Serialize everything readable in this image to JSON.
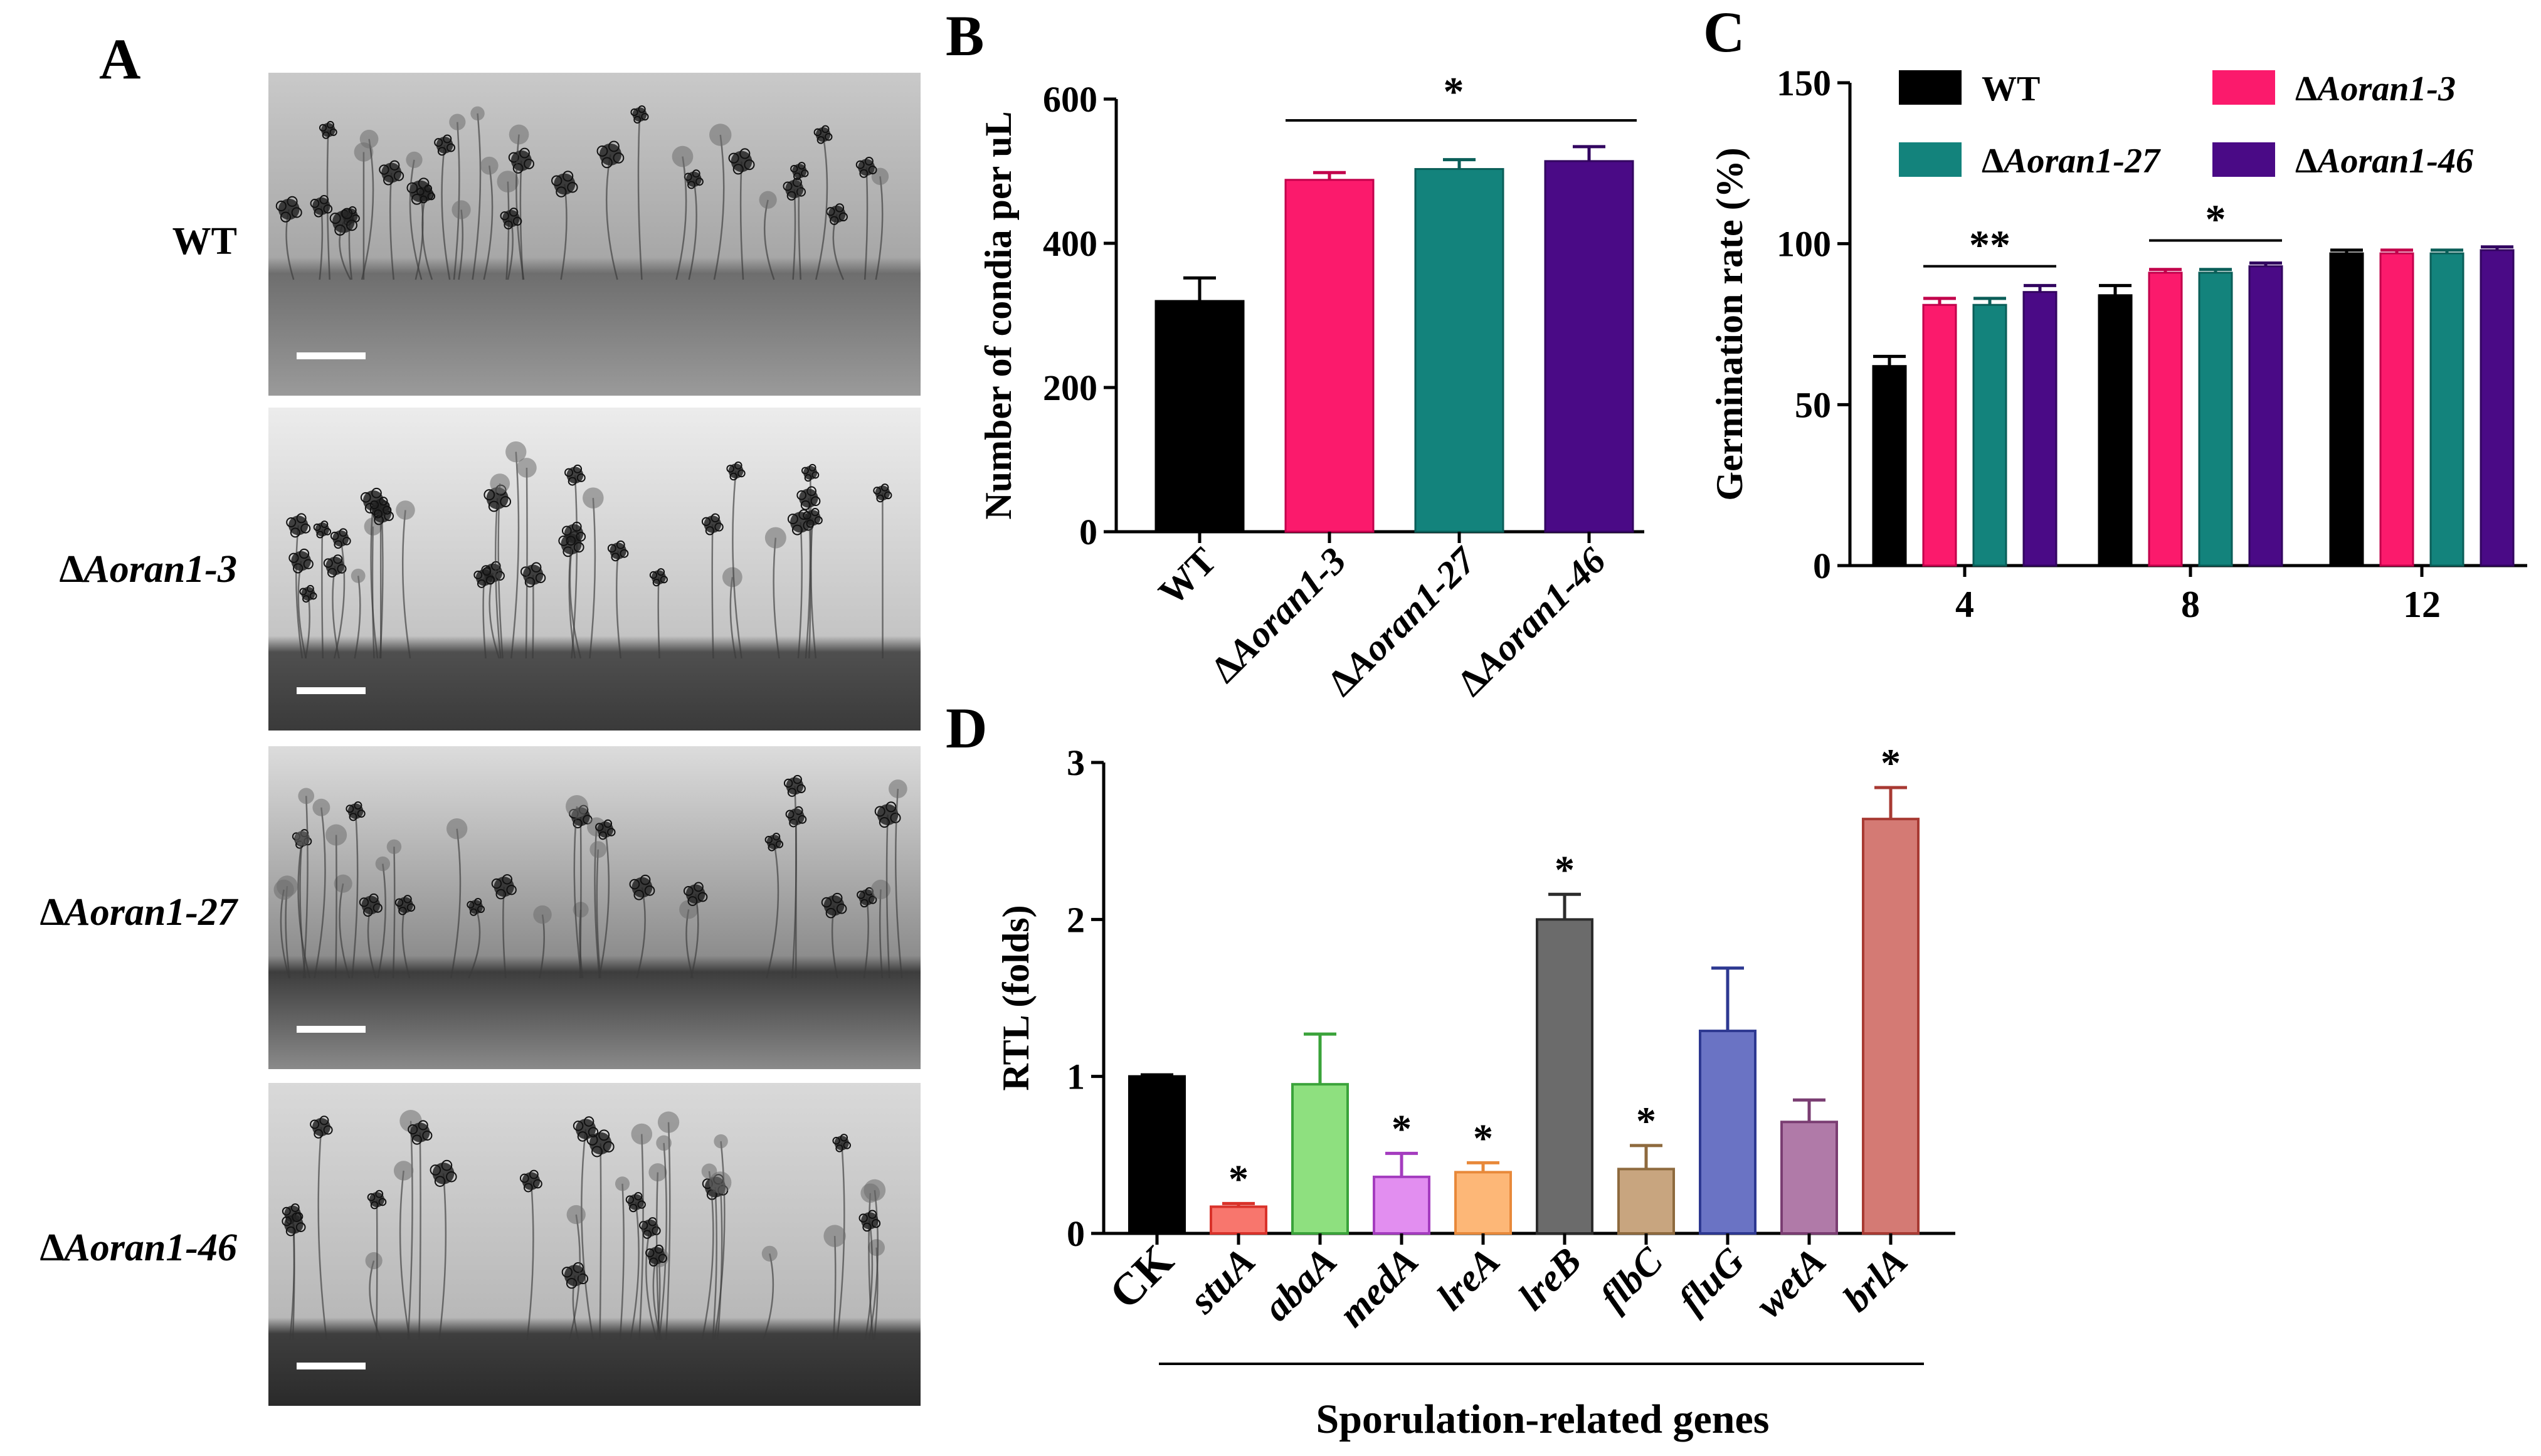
{
  "panel_a": {
    "letter": "A",
    "images": [
      {
        "label_prefix": "",
        "label": "WT"
      },
      {
        "label_prefix": "Δ",
        "label": "Aoran1-3"
      },
      {
        "label_prefix": "Δ",
        "label": "Aoran1-27"
      },
      {
        "label_prefix": "Δ",
        "label": "Aoran1-46"
      }
    ]
  },
  "colors": {
    "wt": "#000000",
    "aoran1_3": "#fb1a6c",
    "aoran1_27": "#13837c",
    "aoran1_46": "#4a0a86"
  },
  "chart_data": [
    {
      "letter": "B",
      "type": "bar",
      "title": "",
      "xlabel": "",
      "ylabel": "Number of condia per uL",
      "ylim": [
        0,
        600
      ],
      "yticks": [
        "0",
        "200",
        "400",
        "600"
      ],
      "categories": [
        "WT",
        "ΔAoran1-3",
        "ΔAoran1-27",
        "ΔAoran1-46"
      ],
      "values": [
        320,
        488,
        503,
        514
      ],
      "errors": [
        32,
        10,
        13,
        20
      ],
      "significance": "*"
    },
    {
      "letter": "C",
      "type": "bar",
      "title": "",
      "xlabel": "",
      "ylabel": "Germination rate (%)",
      "ylim": [
        0,
        150
      ],
      "yticks": [
        "0",
        "50",
        "100",
        "150"
      ],
      "categories": [
        "4",
        "8",
        "12"
      ],
      "legend_position": "top",
      "series": [
        {
          "name": "WT",
          "values": [
            62,
            84,
            97
          ],
          "errors": [
            3,
            3,
            1
          ]
        },
        {
          "name": "ΔAoran1-3",
          "values": [
            81,
            91,
            97
          ],
          "errors": [
            2,
            1,
            1
          ]
        },
        {
          "name": "ΔAoran1-27",
          "values": [
            81,
            91,
            97
          ],
          "errors": [
            2,
            1,
            1
          ]
        },
        {
          "name": "ΔAoran1-46",
          "values": [
            85,
            93,
            98
          ],
          "errors": [
            2,
            1,
            1
          ]
        }
      ],
      "significance": [
        "**",
        "*",
        ""
      ]
    },
    {
      "letter": "D",
      "type": "bar",
      "title": "",
      "xlabel": "Sporulation-related genes",
      "ylabel": "RTL (folds)",
      "ylim": [
        0,
        3
      ],
      "yticks": [
        "0",
        "1",
        "2",
        "3"
      ],
      "categories": [
        "CK",
        "stuA",
        "abaA",
        "medA",
        "lreA",
        "lreB",
        "flbC",
        "fluG",
        "wetA",
        "brlA"
      ],
      "values": [
        1.0,
        0.17,
        0.95,
        0.36,
        0.39,
        2.0,
        0.41,
        1.29,
        0.71,
        2.64
      ],
      "errors": [
        0.01,
        0.02,
        0.32,
        0.15,
        0.06,
        0.16,
        0.15,
        0.4,
        0.14,
        0.2
      ],
      "significance": [
        "",
        "*",
        "",
        "*",
        "*",
        "*",
        "*",
        "",
        "",
        "*"
      ],
      "bar_colors": [
        "#000000",
        "#f8766d",
        "#8ee07f",
        "#e28ef0",
        "#fdb777",
        "#6b6b6b",
        "#c8a57f",
        "#6a73c4",
        "#b07aa8",
        "#d47a74"
      ],
      "edge_colors": [
        "#000000",
        "#d9322a",
        "#3aa33a",
        "#a43cbf",
        "#e8893a",
        "#2c2c2c",
        "#8e6a3e",
        "#2d3891",
        "#7a3d72",
        "#a83a33"
      ]
    }
  ]
}
